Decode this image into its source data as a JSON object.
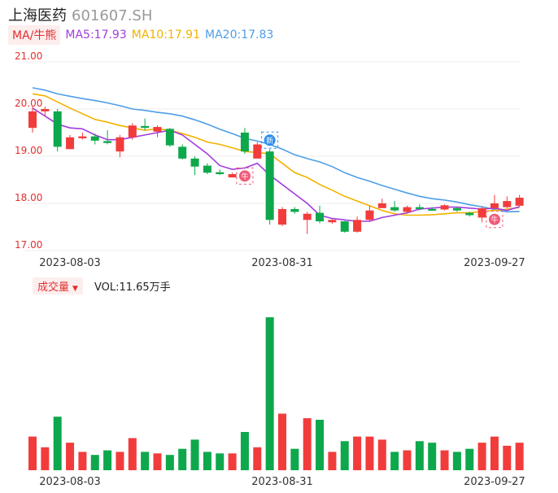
{
  "header": {
    "name": "上海医药",
    "code": "601607.SH"
  },
  "ma_legend": {
    "tag": "MA/牛熊",
    "items": [
      {
        "label": "MA5:17.93",
        "color": "#a23ce0"
      },
      {
        "label": "MA10:17.91",
        "color": "#f2b200"
      },
      {
        "label": "MA20:17.83",
        "color": "#4e9ee8"
      }
    ]
  },
  "volume_legend": {
    "tag": "成交量",
    "value": "VOL:11.65万手"
  },
  "markers": {
    "sell": "牛",
    "new": "新"
  },
  "colors": {
    "up": "#f23c3c",
    "down": "#0da84b"
  },
  "chart_data": [
    {
      "type": "candlestick",
      "y_ticks": [
        "21.00",
        "20.00",
        "19.00",
        "18.00",
        "17.00"
      ],
      "ylim": [
        17.0,
        21.0
      ],
      "x_labels": [
        "2023-08-03",
        "2023-08-31",
        "2023-09-27"
      ],
      "candles": [
        {
          "o": 19.6,
          "c": 19.95,
          "h": 20.05,
          "l": 19.5
        },
        {
          "o": 19.95,
          "c": 20.0,
          "h": 20.05,
          "l": 19.85
        },
        {
          "o": 19.95,
          "c": 19.2,
          "h": 20.0,
          "l": 19.1
        },
        {
          "o": 19.15,
          "c": 19.4,
          "h": 19.45,
          "l": 19.15
        },
        {
          "o": 19.38,
          "c": 19.42,
          "h": 19.5,
          "l": 19.35
        },
        {
          "o": 19.42,
          "c": 19.33,
          "h": 19.48,
          "l": 19.25
        },
        {
          "o": 19.32,
          "c": 19.28,
          "h": 19.55,
          "l": 19.25
        },
        {
          "o": 19.1,
          "c": 19.4,
          "h": 19.45,
          "l": 18.98
        },
        {
          "o": 19.4,
          "c": 19.65,
          "h": 19.7,
          "l": 19.35
        },
        {
          "o": 19.64,
          "c": 19.6,
          "h": 19.8,
          "l": 19.55
        },
        {
          "o": 19.52,
          "c": 19.62,
          "h": 19.65,
          "l": 19.4
        },
        {
          "o": 19.58,
          "c": 19.23,
          "h": 19.6,
          "l": 19.2
        },
        {
          "o": 19.2,
          "c": 18.95,
          "h": 19.25,
          "l": 18.93
        },
        {
          "o": 18.95,
          "c": 18.78,
          "h": 19.0,
          "l": 18.6
        },
        {
          "o": 18.8,
          "c": 18.65,
          "h": 18.85,
          "l": 18.62
        },
        {
          "o": 18.66,
          "c": 18.62,
          "h": 18.72,
          "l": 18.6
        },
        {
          "o": 18.55,
          "c": 18.62,
          "h": 18.65,
          "l": 18.55
        },
        {
          "o": 19.5,
          "c": 19.1,
          "h": 19.6,
          "l": 19.05
        },
        {
          "o": 18.95,
          "c": 19.25,
          "h": 19.3,
          "l": 18.95
        },
        {
          "o": 19.1,
          "c": 17.65,
          "h": 19.15,
          "l": 17.55
        },
        {
          "o": 17.55,
          "c": 17.88,
          "h": 17.92,
          "l": 17.52
        },
        {
          "o": 17.88,
          "c": 17.82,
          "h": 17.92,
          "l": 17.78
        },
        {
          "o": 17.65,
          "c": 17.78,
          "h": 17.82,
          "l": 17.35
        },
        {
          "o": 17.8,
          "c": 17.62,
          "h": 17.95,
          "l": 17.58
        },
        {
          "o": 17.6,
          "c": 17.65,
          "h": 17.66,
          "l": 17.57
        },
        {
          "o": 17.62,
          "c": 17.4,
          "h": 17.63,
          "l": 17.38
        },
        {
          "o": 17.4,
          "c": 17.65,
          "h": 17.72,
          "l": 17.38
        },
        {
          "o": 17.65,
          "c": 17.85,
          "h": 17.95,
          "l": 17.62
        },
        {
          "o": 17.9,
          "c": 18.0,
          "h": 18.1,
          "l": 17.9
        },
        {
          "o": 17.92,
          "c": 17.85,
          "h": 18.05,
          "l": 17.82
        },
        {
          "o": 17.82,
          "c": 17.92,
          "h": 17.95,
          "l": 17.78
        },
        {
          "o": 17.92,
          "c": 17.88,
          "h": 17.98,
          "l": 17.85
        },
        {
          "o": 17.88,
          "c": 17.87,
          "h": 17.92,
          "l": 17.84
        },
        {
          "o": 17.87,
          "c": 17.96,
          "h": 17.98,
          "l": 17.85
        },
        {
          "o": 17.9,
          "c": 17.85,
          "h": 17.93,
          "l": 17.82
        },
        {
          "o": 17.8,
          "c": 17.75,
          "h": 17.82,
          "l": 17.72
        },
        {
          "o": 17.7,
          "c": 17.9,
          "h": 17.93,
          "l": 17.6
        },
        {
          "o": 17.9,
          "c": 18.0,
          "h": 18.18,
          "l": 17.88
        },
        {
          "o": 17.92,
          "c": 18.05,
          "h": 18.15,
          "l": 17.9
        },
        {
          "o": 17.95,
          "c": 18.12,
          "h": 18.18,
          "l": 17.93
        }
      ],
      "ma5": [
        20.02,
        19.85,
        19.68,
        19.6,
        19.58,
        19.45,
        19.35,
        19.35,
        19.4,
        19.45,
        19.5,
        19.55,
        19.45,
        19.25,
        19.05,
        18.8,
        18.72,
        18.75,
        18.85,
        18.6,
        18.4,
        18.2,
        18.0,
        17.75,
        17.68,
        17.65,
        17.62,
        17.62,
        17.7,
        17.75,
        17.8,
        17.88,
        17.9,
        17.92,
        17.92,
        17.9,
        17.88,
        17.9,
        17.85,
        17.93
      ],
      "ma10": [
        20.32,
        20.28,
        20.15,
        20.02,
        19.9,
        19.78,
        19.72,
        19.65,
        19.6,
        19.55,
        19.58,
        19.55,
        19.48,
        19.4,
        19.3,
        19.25,
        19.18,
        19.1,
        19.08,
        19.05,
        18.85,
        18.65,
        18.55,
        18.4,
        18.28,
        18.15,
        18.05,
        17.95,
        17.85,
        17.78,
        17.75,
        17.75,
        17.76,
        17.78,
        17.8,
        17.8,
        17.83,
        17.85,
        17.88,
        17.91
      ],
      "ma20": [
        20.45,
        20.4,
        20.32,
        20.27,
        20.22,
        20.18,
        20.13,
        20.07,
        20.0,
        19.97,
        19.93,
        19.9,
        19.85,
        19.77,
        19.68,
        19.57,
        19.48,
        19.38,
        19.32,
        19.25,
        19.15,
        19.03,
        18.95,
        18.88,
        18.78,
        18.65,
        18.55,
        18.47,
        18.38,
        18.3,
        18.22,
        18.15,
        18.1,
        18.07,
        18.03,
        17.97,
        17.93,
        17.87,
        17.82,
        17.83
      ]
    },
    {
      "type": "bar",
      "x_labels": [
        "2023-08-03",
        "2023-08-31",
        "2023-09-27"
      ],
      "ylim": [
        0,
        100
      ],
      "volumes": [
        22,
        15,
        35,
        18,
        12,
        10,
        13,
        12,
        21,
        12,
        11,
        10,
        14,
        20,
        12,
        11,
        11,
        25,
        15,
        100,
        37,
        14,
        34,
        33,
        12,
        19,
        22,
        22,
        20,
        12,
        13,
        19,
        18,
        13,
        12,
        14,
        18,
        22,
        16,
        18
      ]
    }
  ]
}
